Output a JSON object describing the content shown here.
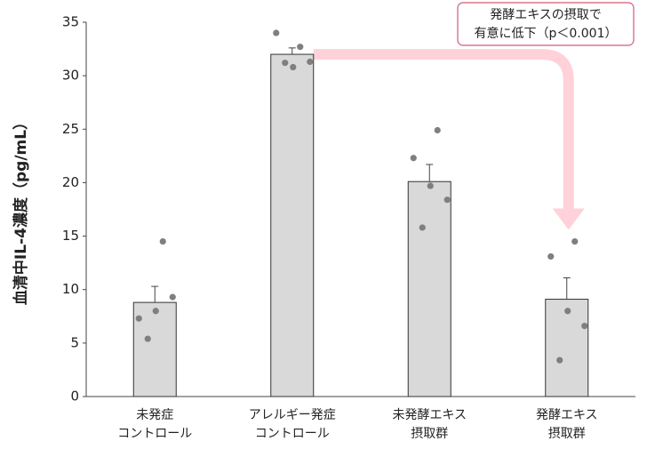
{
  "chart_data": {
    "type": "bar",
    "ylabel": "血清中IL-4濃度（pg/mL）",
    "categories": [
      [
        "未発症",
        "コントロール"
      ],
      [
        "アレルギー発症",
        "コントロール"
      ],
      [
        "未発酵エキス",
        "摂取群"
      ],
      [
        "発酵エキス",
        "摂取群"
      ]
    ],
    "values": [
      8.8,
      32.0,
      20.1,
      9.1
    ],
    "errors": [
      1.5,
      0.6,
      1.6,
      2.0
    ],
    "points": [
      [
        14.5,
        7.3,
        8.0,
        9.3,
        5.4
      ],
      [
        32.7,
        34.0,
        30.8,
        31.3,
        31.2
      ],
      [
        24.9,
        22.3,
        19.7,
        18.4,
        15.8
      ],
      [
        14.5,
        13.1,
        8.0,
        6.6,
        3.4
      ]
    ],
    "color": "#d9d9d9",
    "point_color": "#7f7f7f",
    "ylim": [
      0,
      35
    ],
    "yticks": [
      0,
      5,
      10,
      15,
      20,
      25,
      30,
      35
    ],
    "annotation": [
      "発酵エキスの摂取で",
      "有意に低下（p＜0.001）"
    ]
  }
}
